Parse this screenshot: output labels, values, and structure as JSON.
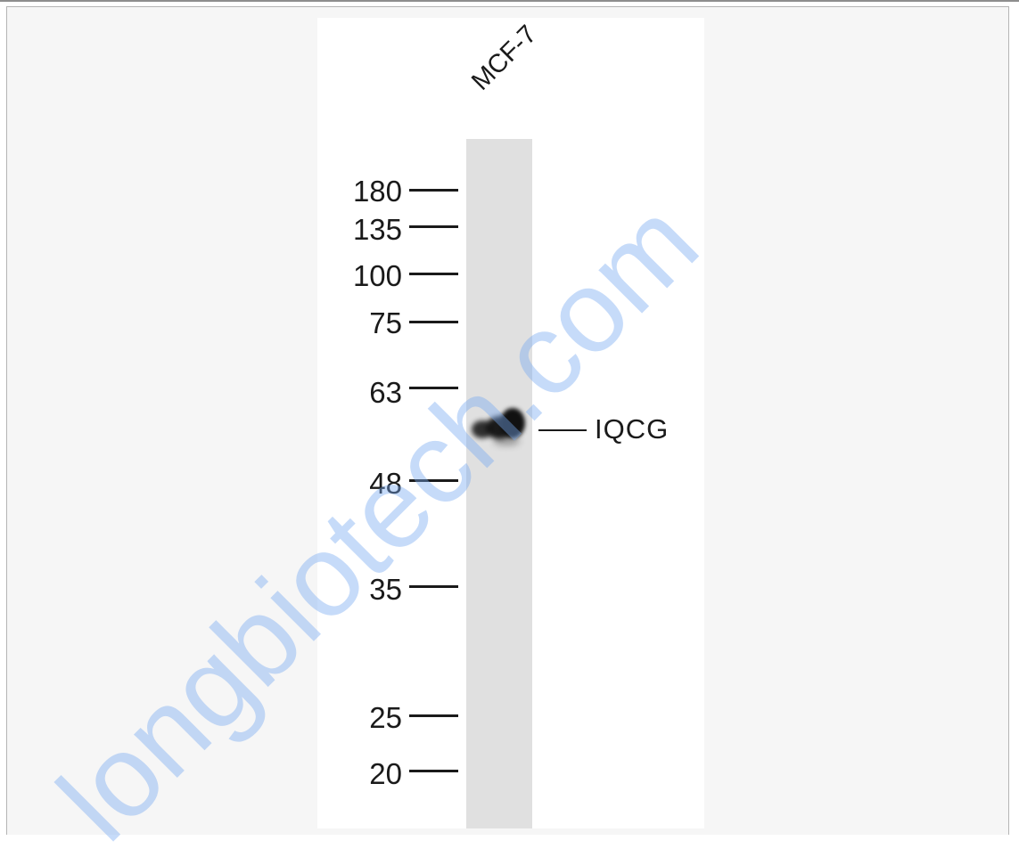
{
  "blot": {
    "lane_label": "MCF-7",
    "band_label": "IQCG",
    "markers": [
      {
        "label": "180",
        "kda": 180
      },
      {
        "label": "135",
        "kda": 135
      },
      {
        "label": "100",
        "kda": 100
      },
      {
        "label": "75",
        "kda": 75
      },
      {
        "label": "63",
        "kda": 63
      },
      {
        "label": "48",
        "kda": 48
      },
      {
        "label": "35",
        "kda": 35
      },
      {
        "label": "25",
        "kda": 25
      },
      {
        "label": "20",
        "kda": 20
      }
    ]
  },
  "watermark": {
    "text": "longbiotech.com",
    "color": "#7aaaf0"
  },
  "colors": {
    "background": "#f6f6f6",
    "panel": "#ffffff",
    "lane": "#e0e0e0",
    "band": "#111111"
  }
}
